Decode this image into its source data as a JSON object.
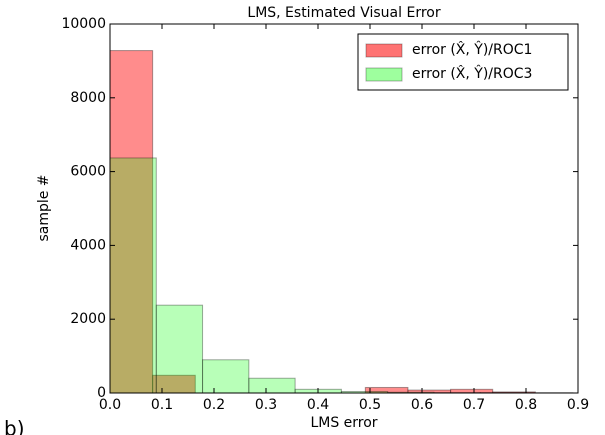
{
  "chart_data": {
    "type": "histogram",
    "title": "LMS, Estimated Visual Error",
    "xlabel": "LMS error",
    "ylabel": "sample #",
    "annotation": "b)",
    "series": [
      {
        "name": "error (X̂, Ŷ)/ROC1",
        "color": "#ff0000",
        "alpha": 0.45,
        "bins": [
          0,
          0.082,
          0.164,
          0.245,
          0.327,
          0.409,
          0.491,
          0.573,
          0.655,
          0.736,
          0.818,
          0.9
        ],
        "values": [
          9280,
          480,
          0,
          0,
          0,
          0,
          150,
          80,
          100,
          30,
          0
        ]
      },
      {
        "name": "error (X̂, Ŷ)/ROC3",
        "color": "#00ff00",
        "alpha": 0.28,
        "bins": [
          0,
          0.089,
          0.178,
          0.267,
          0.356,
          0.445,
          0.534,
          0.623,
          0.712,
          0.801,
          0.89
        ],
        "values": [
          6370,
          2380,
          900,
          400,
          100,
          40,
          20,
          10,
          10,
          5
        ]
      }
    ],
    "xlim": [
      0,
      0.9
    ],
    "xticks": [
      {
        "value": 0,
        "label": "0.0"
      },
      0.1,
      0.2,
      0.3,
      0.4,
      0.5,
      0.6,
      0.7,
      0.8,
      0.9
    ],
    "ylim": [
      0,
      10000
    ],
    "yticks": [
      0,
      2000,
      4000,
      6000,
      8000,
      10000
    ],
    "grid": false,
    "legend": "upper right"
  }
}
